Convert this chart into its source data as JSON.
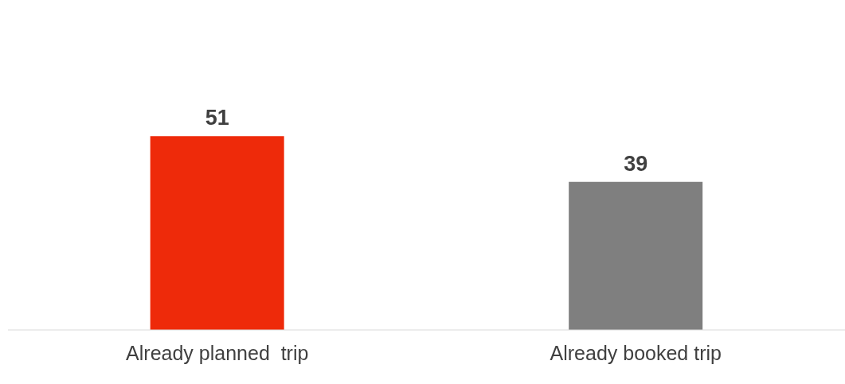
{
  "chart_data": {
    "type": "bar",
    "categories": [
      "Already planned  trip",
      "Already booked trip"
    ],
    "values": [
      51,
      39
    ],
    "colors": [
      "#ee2a0a",
      "#7f7f7f"
    ],
    "data_labels": true
  }
}
